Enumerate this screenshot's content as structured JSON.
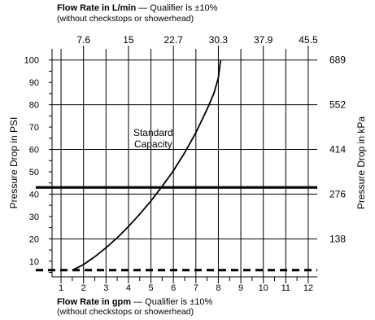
{
  "chart_data": {
    "type": "line",
    "top_title": {
      "bold": "Flow Rate in L/min",
      "rest": " — Qualifier is ±10%",
      "note": "(without checkstops or showerhead)"
    },
    "bottom_title": {
      "bold": "Flow Rate in gpm",
      "rest": " — Qualifier is ±10%",
      "note": "(without checkstops or showerhead)"
    },
    "ylabel_left": "Pressure Drop in PSI",
    "ylabel_right": "Pressure Drop in kPa",
    "x_gpm": {
      "lim": [
        0.6,
        12.4
      ],
      "ticks": [
        1,
        2,
        3,
        4,
        5,
        6,
        7,
        8,
        9,
        10,
        11,
        12
      ],
      "minor_step": 0.5
    },
    "x_lmin": {
      "ticks": [
        {
          "label": "7.6",
          "gpm": 2
        },
        {
          "label": "15",
          "gpm": 4
        },
        {
          "label": "22.7",
          "gpm": 6
        },
        {
          "label": "30.3",
          "gpm": 8
        },
        {
          "label": "37.9",
          "gpm": 10
        },
        {
          "label": "45.5",
          "gpm": 12
        }
      ]
    },
    "y_psi": {
      "lim": [
        3,
        105
      ],
      "ticks": [
        10,
        20,
        30,
        40,
        50,
        60,
        70,
        80,
        90,
        100
      ],
      "minor_step": 5
    },
    "y_kpa": {
      "ticks": [
        {
          "label": "138",
          "psi": 20
        },
        {
          "label": "276",
          "psi": 40
        },
        {
          "label": "414",
          "psi": 60
        },
        {
          "label": "552",
          "psi": 80
        },
        {
          "label": "689",
          "psi": 100
        }
      ]
    },
    "thin_hlines_psi": [
      20,
      40,
      60,
      80,
      100
    ],
    "series": [
      {
        "name": "Standard Capacity",
        "label_lines": [
          "Standard",
          "Capacity"
        ],
        "label_at": {
          "x": 5.1,
          "y": 66
        },
        "x": [
          1.5,
          2.0,
          2.5,
          3.0,
          3.5,
          4.0,
          4.5,
          5.0,
          5.5,
          6.0,
          6.5,
          7.0,
          7.5,
          7.8,
          8.0,
          8.1
        ],
        "y": [
          6,
          8.5,
          12,
          16,
          20.5,
          25.5,
          31,
          37,
          43.5,
          50.5,
          58.5,
          67.5,
          78,
          85,
          92,
          100
        ]
      }
    ],
    "reference_lines": [
      {
        "style": "solid-heavy",
        "psi": 43
      },
      {
        "style": "dashed-heavy",
        "psi": 6
      }
    ]
  }
}
